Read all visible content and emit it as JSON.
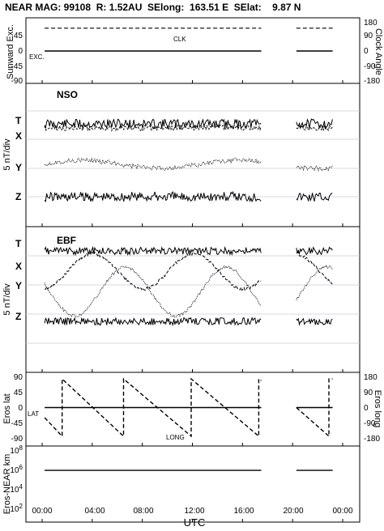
{
  "header": {
    "title": "NEAR MAG: 99108  R: 1.52AU  SElong:  163.51 E  SElat:    9.87 N"
  },
  "colors": {
    "ink": "#000000",
    "grid": "#c7cbd8"
  },
  "chart_data": [
    {
      "type": "line",
      "panel": "sunward-excursion-clock-angle",
      "ylabel": "Sunward Exc.",
      "ylabel_right": "Clock Angle",
      "left_ticks": [
        "45",
        "0",
        "-45",
        "-90"
      ],
      "right_ticks": [
        "180",
        "90",
        "0",
        "-90",
        "-180"
      ],
      "ylim": [
        -90,
        90
      ],
      "ylim_right": [
        -180,
        180
      ],
      "series": [
        {
          "name": "CLK",
          "style": "dashed",
          "axis": "right",
          "segments": [
            {
              "x": [
                0.2,
                17.5
              ],
              "y": [
                145,
                145
              ]
            },
            {
              "x": [
                20.3,
                23.2
              ],
              "y": [
                145,
                145
              ]
            }
          ]
        },
        {
          "name": "EXC.",
          "style": "solid",
          "axis": "left",
          "segments": [
            {
              "x": [
                0.2,
                17.5
              ],
              "y": [
                0,
                0
              ]
            },
            {
              "x": [
                20.3,
                23.2
              ],
              "y": [
                0,
                0
              ]
            }
          ]
        }
      ]
    },
    {
      "type": "line",
      "panel": "nso",
      "label": "NSO",
      "ylabel": "5 nT/div",
      "components": [
        "T",
        "X",
        "Y",
        "Z"
      ],
      "segments_hours": [
        [
          0.2,
          17.5
        ],
        [
          20.3,
          23.2
        ]
      ],
      "note": "stacked offset traces, 5 nT per grid division"
    },
    {
      "type": "line",
      "panel": "ebf",
      "label": "EBF",
      "ylabel": "5 nT/div",
      "components": [
        "T",
        "X",
        "Y",
        "Z"
      ],
      "segments_hours": [
        [
          0.2,
          17.5
        ],
        [
          20.3,
          23.2
        ]
      ],
      "note": "stacked offset traces, 5 nT per grid division"
    },
    {
      "type": "line",
      "panel": "eros-lat-long",
      "ylabel": "Eros lat",
      "ylabel_right": "Eros long",
      "left_ticks": [
        "90",
        "45",
        "0",
        "-45",
        "-90"
      ],
      "right_ticks": [
        "180",
        "90",
        "0",
        "-90",
        "-180"
      ],
      "ylim": [
        -90,
        90
      ],
      "ylim_right": [
        -180,
        180
      ],
      "series": [
        {
          "name": "LAT",
          "style": "solid",
          "axis": "left",
          "segments": [
            {
              "x": [
                0.2,
                17.5
              ],
              "y": [
                0,
                0
              ]
            },
            {
              "x": [
                20.3,
                23.2
              ],
              "y": [
                0,
                0
              ]
            }
          ]
        },
        {
          "name": "LONG",
          "style": "dashed",
          "axis": "right",
          "segments": [
            {
              "x": [
                0.2,
                1.6,
                1.6,
                6.5,
                6.5,
                11.9,
                11.9,
                17.3,
                17.3,
                17.5
              ],
              "y": [
                -60,
                -170,
                170,
                -170,
                170,
                -170,
                170,
                -170,
                170,
                160
              ]
            },
            {
              "x": [
                20.3,
                22.9,
                22.9,
                23.2
              ],
              "y": [
                0,
                -170,
                170,
                170
              ]
            }
          ]
        }
      ]
    },
    {
      "type": "line",
      "panel": "eros-near-distance",
      "ylabel": "Eros-NEAR km",
      "yscale": "log",
      "ylim": [
        10,
        100000000
      ],
      "ticks": [
        {
          "base": "10",
          "exp": "8"
        },
        {
          "base": "10",
          "exp": "6"
        },
        {
          "base": "10",
          "exp": "4"
        },
        {
          "base": "10",
          "exp": "2"
        }
      ],
      "series": [
        {
          "name": "",
          "style": "solid",
          "segments": [
            {
              "x": [
                0.2,
                17.5
              ],
              "y": [
                1000000,
                1000000
              ]
            },
            {
              "x": [
                20.3,
                23.2
              ],
              "y": [
                1000000,
                1000000
              ]
            }
          ]
        }
      ]
    }
  ],
  "xaxis": {
    "label": "UTC",
    "range": [
      0,
      24
    ],
    "tick_labels": [
      "00:00",
      "04:00",
      "08:00",
      "12:00",
      "16:00",
      "20:00",
      "00:00"
    ]
  }
}
